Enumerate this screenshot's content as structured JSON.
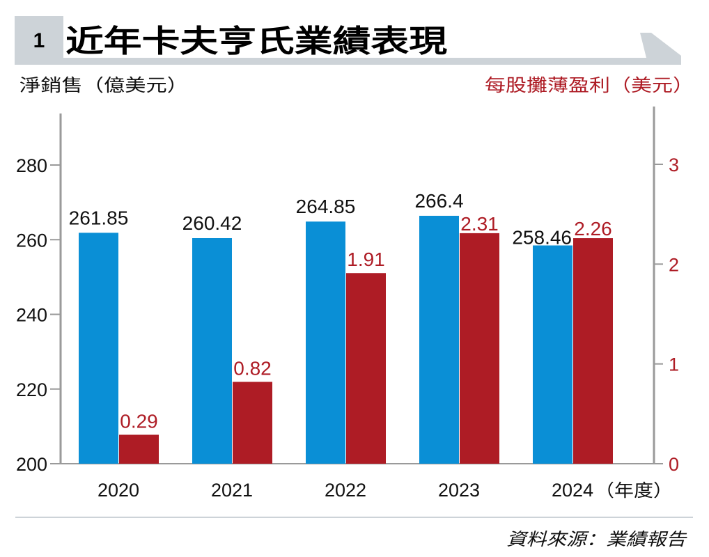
{
  "header": {
    "number": "1",
    "title": "近年卡夫亨氏業績表現"
  },
  "colors": {
    "sales": "#0a8fd6",
    "eps": "#ae1c25",
    "axis": "#9a9a9a",
    "band": "#cdd3d8",
    "text": "#111111"
  },
  "chart_data": {
    "type": "bar",
    "title": "近年卡夫亨氏業績表現",
    "categories": [
      "2020",
      "2021",
      "2022",
      "2023",
      "2024"
    ],
    "category_suffix": "（年度）",
    "ylabel_left": "淨銷售（億美元）",
    "ylabel_right": "每股攤薄盈利（美元）",
    "ylim_left": [
      200,
      290
    ],
    "ylim_right": [
      0,
      3.375
    ],
    "yticks_left": [
      "200",
      "220",
      "240",
      "260",
      "280"
    ],
    "yticks_right": [
      "0",
      "1",
      "2",
      "3"
    ],
    "grid": false,
    "series": [
      {
        "name": "淨銷售（億美元）",
        "axis": "left",
        "color": "#0a8fd6",
        "values": [
          261.85,
          260.42,
          264.85,
          266.4,
          258.46
        ],
        "labels": [
          "261.85",
          "260.42",
          "264.85",
          "266.4",
          "258.46"
        ]
      },
      {
        "name": "每股攤薄盈利（美元）",
        "axis": "right",
        "color": "#ae1c25",
        "values": [
          0.29,
          0.82,
          1.91,
          2.31,
          2.26
        ],
        "labels": [
          "0.29",
          "0.82",
          "1.91",
          "2.31",
          "2.26"
        ]
      }
    ]
  },
  "footer": {
    "source": "資料來源：業績報告"
  }
}
